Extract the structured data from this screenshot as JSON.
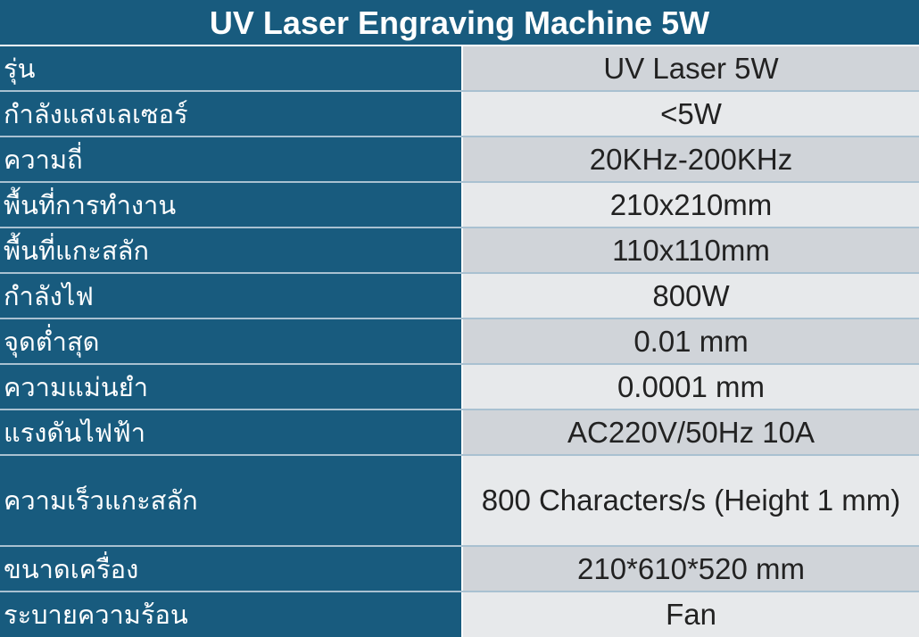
{
  "title": "UV Laser Engraving Machine 5W",
  "rows": [
    {
      "label": "รุ่น",
      "value": "UV Laser 5W"
    },
    {
      "label": "กำลังแสงเลเซอร์",
      "value": "<5W"
    },
    {
      "label": "ความถี่",
      "value": "20KHz-200KHz"
    },
    {
      "label": "พื้นที่การทำงาน",
      "value": "210x210mm"
    },
    {
      "label": "พื้นที่แกะสลัก",
      "value": "110x110mm"
    },
    {
      "label": "กำลังไฟ",
      "value": "800W"
    },
    {
      "label": "จุดต่ำสุด",
      "value": "0.01 mm"
    },
    {
      "label": "ความแม่นยำ",
      "value": "0.0001 mm"
    },
    {
      "label": "แรงดันไฟฟ้า",
      "value": "AC220V/50Hz 10A"
    },
    {
      "label": "ความเร็วแกะสลัก",
      "value": "800 Characters/s (Height 1 mm)"
    },
    {
      "label": "ขนาดเครื่อง",
      "value": "210*610*520 mm"
    },
    {
      "label": "ระบายความร้อน",
      "value": "Fan"
    }
  ],
  "colors": {
    "header": "#185b7e",
    "row_odd": "#d0d4d9",
    "row_even": "#e7e9eb"
  }
}
